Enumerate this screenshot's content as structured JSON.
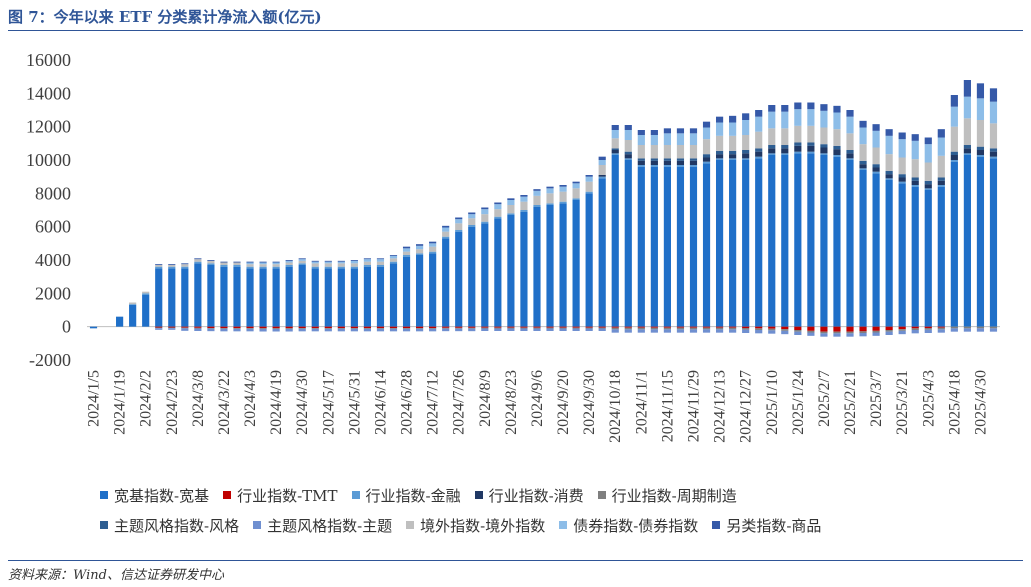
{
  "header": {
    "title": "图 7：今年以来 ETF 分类累计净流入额(亿元)"
  },
  "footer": {
    "source": "资料来源：Wind、信达证券研发中心"
  },
  "chart_data": {
    "type": "bar",
    "stacked": true,
    "ylim": [
      -2000,
      16000
    ],
    "yticks": [
      "16000",
      "14000",
      "12000",
      "10000",
      "8000",
      "6000",
      "4000",
      "2000",
      "0",
      "-2000"
    ],
    "ytick_values": [
      16000,
      14000,
      12000,
      10000,
      8000,
      6000,
      4000,
      2000,
      0,
      -2000
    ],
    "grid": false,
    "legend_position": "bottom",
    "xtick_labels": [
      "2024/1/5",
      "2024/1/19",
      "2024/2/2",
      "2024/2/23",
      "2024/3/8",
      "2024/3/22",
      "2024/4/3",
      "2024/4/19",
      "2024/4/30",
      "2024/5/17",
      "2024/5/31",
      "2024/6/14",
      "2024/6/28",
      "2024/7/12",
      "2024/7/26",
      "2024/8/9",
      "2024/8/23",
      "2024/9/6",
      "2024/9/20",
      "2024/9/30",
      "2024/10/18",
      "2024/11/1",
      "2024/11/15",
      "2024/11/29",
      "2024/12/13",
      "2024/12/27",
      "2025/1/10",
      "2025/1/24",
      "2025/2/7",
      "2025/2/21",
      "2025/3/7",
      "2025/3/21",
      "2025/4/3",
      "2025/4/18",
      "2025/4/30"
    ],
    "total_bars": 70,
    "series": [
      {
        "name": "宽基指数-宽基",
        "color": "#1f6fc8",
        "values": [
          -100,
          0,
          600,
          1300,
          1900,
          3500,
          3500,
          3500,
          3800,
          3700,
          3600,
          3600,
          3500,
          3500,
          3500,
          3600,
          3700,
          3500,
          3500,
          3500,
          3500,
          3600,
          3600,
          3800,
          4200,
          4300,
          4400,
          5300,
          5700,
          6000,
          6200,
          6500,
          6700,
          6900,
          7200,
          7300,
          7400,
          7600,
          8000,
          8900,
          10300,
          10000,
          9600,
          9600,
          9600,
          9600,
          9600,
          9800,
          10000,
          10000,
          10000,
          10100,
          10300,
          10300,
          10400,
          10400,
          10300,
          10200,
          10000,
          9400,
          9200,
          8800,
          8600,
          8400,
          8200,
          8400,
          9900,
          10300,
          10200,
          10100
        ]
      },
      {
        "name": "行业指数-TMT",
        "color": "#c00000",
        "values": [
          0,
          0,
          0,
          0,
          0,
          -50,
          -50,
          -60,
          -70,
          -80,
          -80,
          -80,
          -80,
          -90,
          -90,
          -90,
          -80,
          -80,
          -80,
          -80,
          -80,
          -80,
          -80,
          -80,
          -80,
          -80,
          -80,
          -70,
          -70,
          -70,
          -60,
          -60,
          -60,
          -60,
          -60,
          -60,
          -60,
          -60,
          -60,
          -60,
          -60,
          -60,
          -60,
          -60,
          -60,
          -60,
          -60,
          -60,
          -60,
          -60,
          -80,
          -100,
          -120,
          -150,
          -200,
          -250,
          -300,
          -300,
          -300,
          -280,
          -250,
          -200,
          -150,
          -100,
          -80,
          -60,
          0,
          0,
          0,
          0
        ]
      },
      {
        "name": "行业指数-金融",
        "color": "#5b9bd5",
        "values": [
          0,
          0,
          0,
          50,
          100,
          100,
          100,
          100,
          100,
          100,
          100,
          100,
          100,
          100,
          100,
          100,
          100,
          100,
          100,
          100,
          100,
          100,
          100,
          100,
          100,
          100,
          100,
          100,
          100,
          100,
          100,
          100,
          100,
          100,
          100,
          100,
          100,
          100,
          100,
          100,
          100,
          100,
          100,
          100,
          100,
          100,
          100,
          100,
          100,
          100,
          100,
          100,
          100,
          100,
          100,
          100,
          100,
          100,
          100,
          100,
          100,
          100,
          100,
          100,
          100,
          100,
          100,
          100,
          100,
          100
        ]
      },
      {
        "name": "行业指数-消费",
        "color": "#203864",
        "values": [
          0,
          0,
          0,
          0,
          0,
          0,
          0,
          0,
          0,
          0,
          0,
          0,
          0,
          0,
          0,
          0,
          0,
          0,
          0,
          0,
          0,
          0,
          0,
          0,
          0,
          0,
          0,
          0,
          0,
          0,
          0,
          0,
          0,
          0,
          0,
          0,
          0,
          0,
          0,
          100,
          200,
          250,
          250,
          250,
          250,
          250,
          250,
          250,
          250,
          250,
          300,
          300,
          300,
          300,
          350,
          350,
          350,
          350,
          300,
          250,
          250,
          250,
          250,
          250,
          250,
          250,
          300,
          300,
          300,
          300
        ]
      },
      {
        "name": "行业指数-周期制造",
        "color": "#7f7f7f",
        "values": [
          0,
          0,
          0,
          0,
          0,
          -40,
          -40,
          -40,
          -40,
          -40,
          -50,
          -50,
          -50,
          -50,
          -50,
          -50,
          -50,
          -50,
          -50,
          -50,
          -50,
          -50,
          -50,
          -50,
          -50,
          -50,
          -50,
          -50,
          -50,
          -50,
          -50,
          -50,
          -50,
          -50,
          -50,
          -50,
          -50,
          -50,
          -50,
          -50,
          -100,
          -100,
          -100,
          -100,
          -100,
          -100,
          -100,
          -100,
          -100,
          -100,
          -100,
          -100,
          -100,
          -100,
          -100,
          -100,
          -100,
          -100,
          -100,
          -100,
          -100,
          -100,
          -100,
          -100,
          -100,
          -100,
          -100,
          -100,
          -100,
          -100
        ]
      },
      {
        "name": "主题风格指数-风格",
        "color": "#2e5e92",
        "values": [
          0,
          0,
          0,
          0,
          0,
          0,
          0,
          0,
          0,
          0,
          0,
          0,
          0,
          0,
          0,
          0,
          0,
          0,
          0,
          0,
          0,
          0,
          0,
          0,
          0,
          0,
          0,
          0,
          0,
          0,
          0,
          0,
          0,
          0,
          0,
          0,
          0,
          0,
          0,
          0,
          100,
          150,
          150,
          150,
          150,
          150,
          150,
          200,
          200,
          200,
          200,
          200,
          200,
          200,
          200,
          200,
          200,
          200,
          200,
          200,
          200,
          200,
          200,
          200,
          200,
          200,
          200,
          200,
          200,
          200
        ]
      },
      {
        "name": "主题风格指数-主题",
        "color": "#6f8fd0",
        "values": [
          0,
          0,
          0,
          0,
          0,
          -100,
          -100,
          -150,
          -150,
          -150,
          -150,
          -150,
          -150,
          -150,
          -150,
          -150,
          -150,
          -150,
          -150,
          -150,
          -150,
          -150,
          -150,
          -150,
          -150,
          -150,
          -150,
          -150,
          -150,
          -150,
          -150,
          -150,
          -150,
          -150,
          -150,
          -150,
          -150,
          -150,
          -150,
          -150,
          -200,
          -200,
          -200,
          -200,
          -200,
          -200,
          -200,
          -200,
          -200,
          -200,
          -200,
          -200,
          -200,
          -200,
          -200,
          -200,
          -200,
          -200,
          -200,
          -200,
          -200,
          -200,
          -200,
          -200,
          -200,
          -200,
          -200,
          -200,
          -200,
          -200
        ]
      },
      {
        "name": "境外指数-境外指数",
        "color": "#bfbfbf",
        "values": [
          0,
          0,
          0,
          100,
          100,
          100,
          100,
          150,
          150,
          150,
          150,
          150,
          150,
          150,
          150,
          150,
          150,
          200,
          200,
          200,
          200,
          200,
          200,
          200,
          200,
          250,
          300,
          300,
          400,
          400,
          450,
          450,
          500,
          500,
          550,
          600,
          600,
          600,
          600,
          600,
          600,
          700,
          800,
          800,
          800,
          800,
          800,
          900,
          900,
          900,
          900,
          1000,
          1000,
          1000,
          1000,
          1000,
          1000,
          1000,
          1000,
          1000,
          1000,
          1000,
          1000,
          1100,
          1100,
          1300,
          1500,
          1600,
          1600,
          1500
        ]
      },
      {
        "name": "债券指数-债券指数",
        "color": "#8dbde8",
        "values": [
          0,
          0,
          0,
          0,
          0,
          0,
          0,
          0,
          0,
          0,
          0,
          0,
          100,
          100,
          100,
          100,
          100,
          100,
          100,
          100,
          150,
          150,
          150,
          150,
          200,
          200,
          200,
          250,
          250,
          250,
          300,
          300,
          300,
          300,
          300,
          300,
          300,
          300,
          300,
          300,
          500,
          600,
          600,
          600,
          700,
          700,
          700,
          700,
          800,
          800,
          900,
          900,
          1000,
          1000,
          1000,
          1000,
          1000,
          1000,
          1000,
          1000,
          1000,
          1100,
          1100,
          1100,
          1100,
          1100,
          1200,
          1300,
          1300,
          1300
        ]
      },
      {
        "name": "另类指数-商品",
        "color": "#3559a8",
        "values": [
          0,
          0,
          0,
          0,
          0,
          50,
          50,
          50,
          50,
          50,
          50,
          50,
          50,
          50,
          50,
          50,
          50,
          50,
          50,
          50,
          50,
          50,
          50,
          50,
          100,
          100,
          100,
          100,
          100,
          100,
          100,
          100,
          100,
          100,
          100,
          100,
          100,
          100,
          100,
          200,
          300,
          300,
          300,
          300,
          300,
          300,
          300,
          350,
          350,
          400,
          400,
          400,
          400,
          400,
          400,
          400,
          400,
          400,
          400,
          400,
          400,
          400,
          400,
          400,
          400,
          500,
          700,
          1000,
          900,
          800
        ]
      }
    ]
  }
}
